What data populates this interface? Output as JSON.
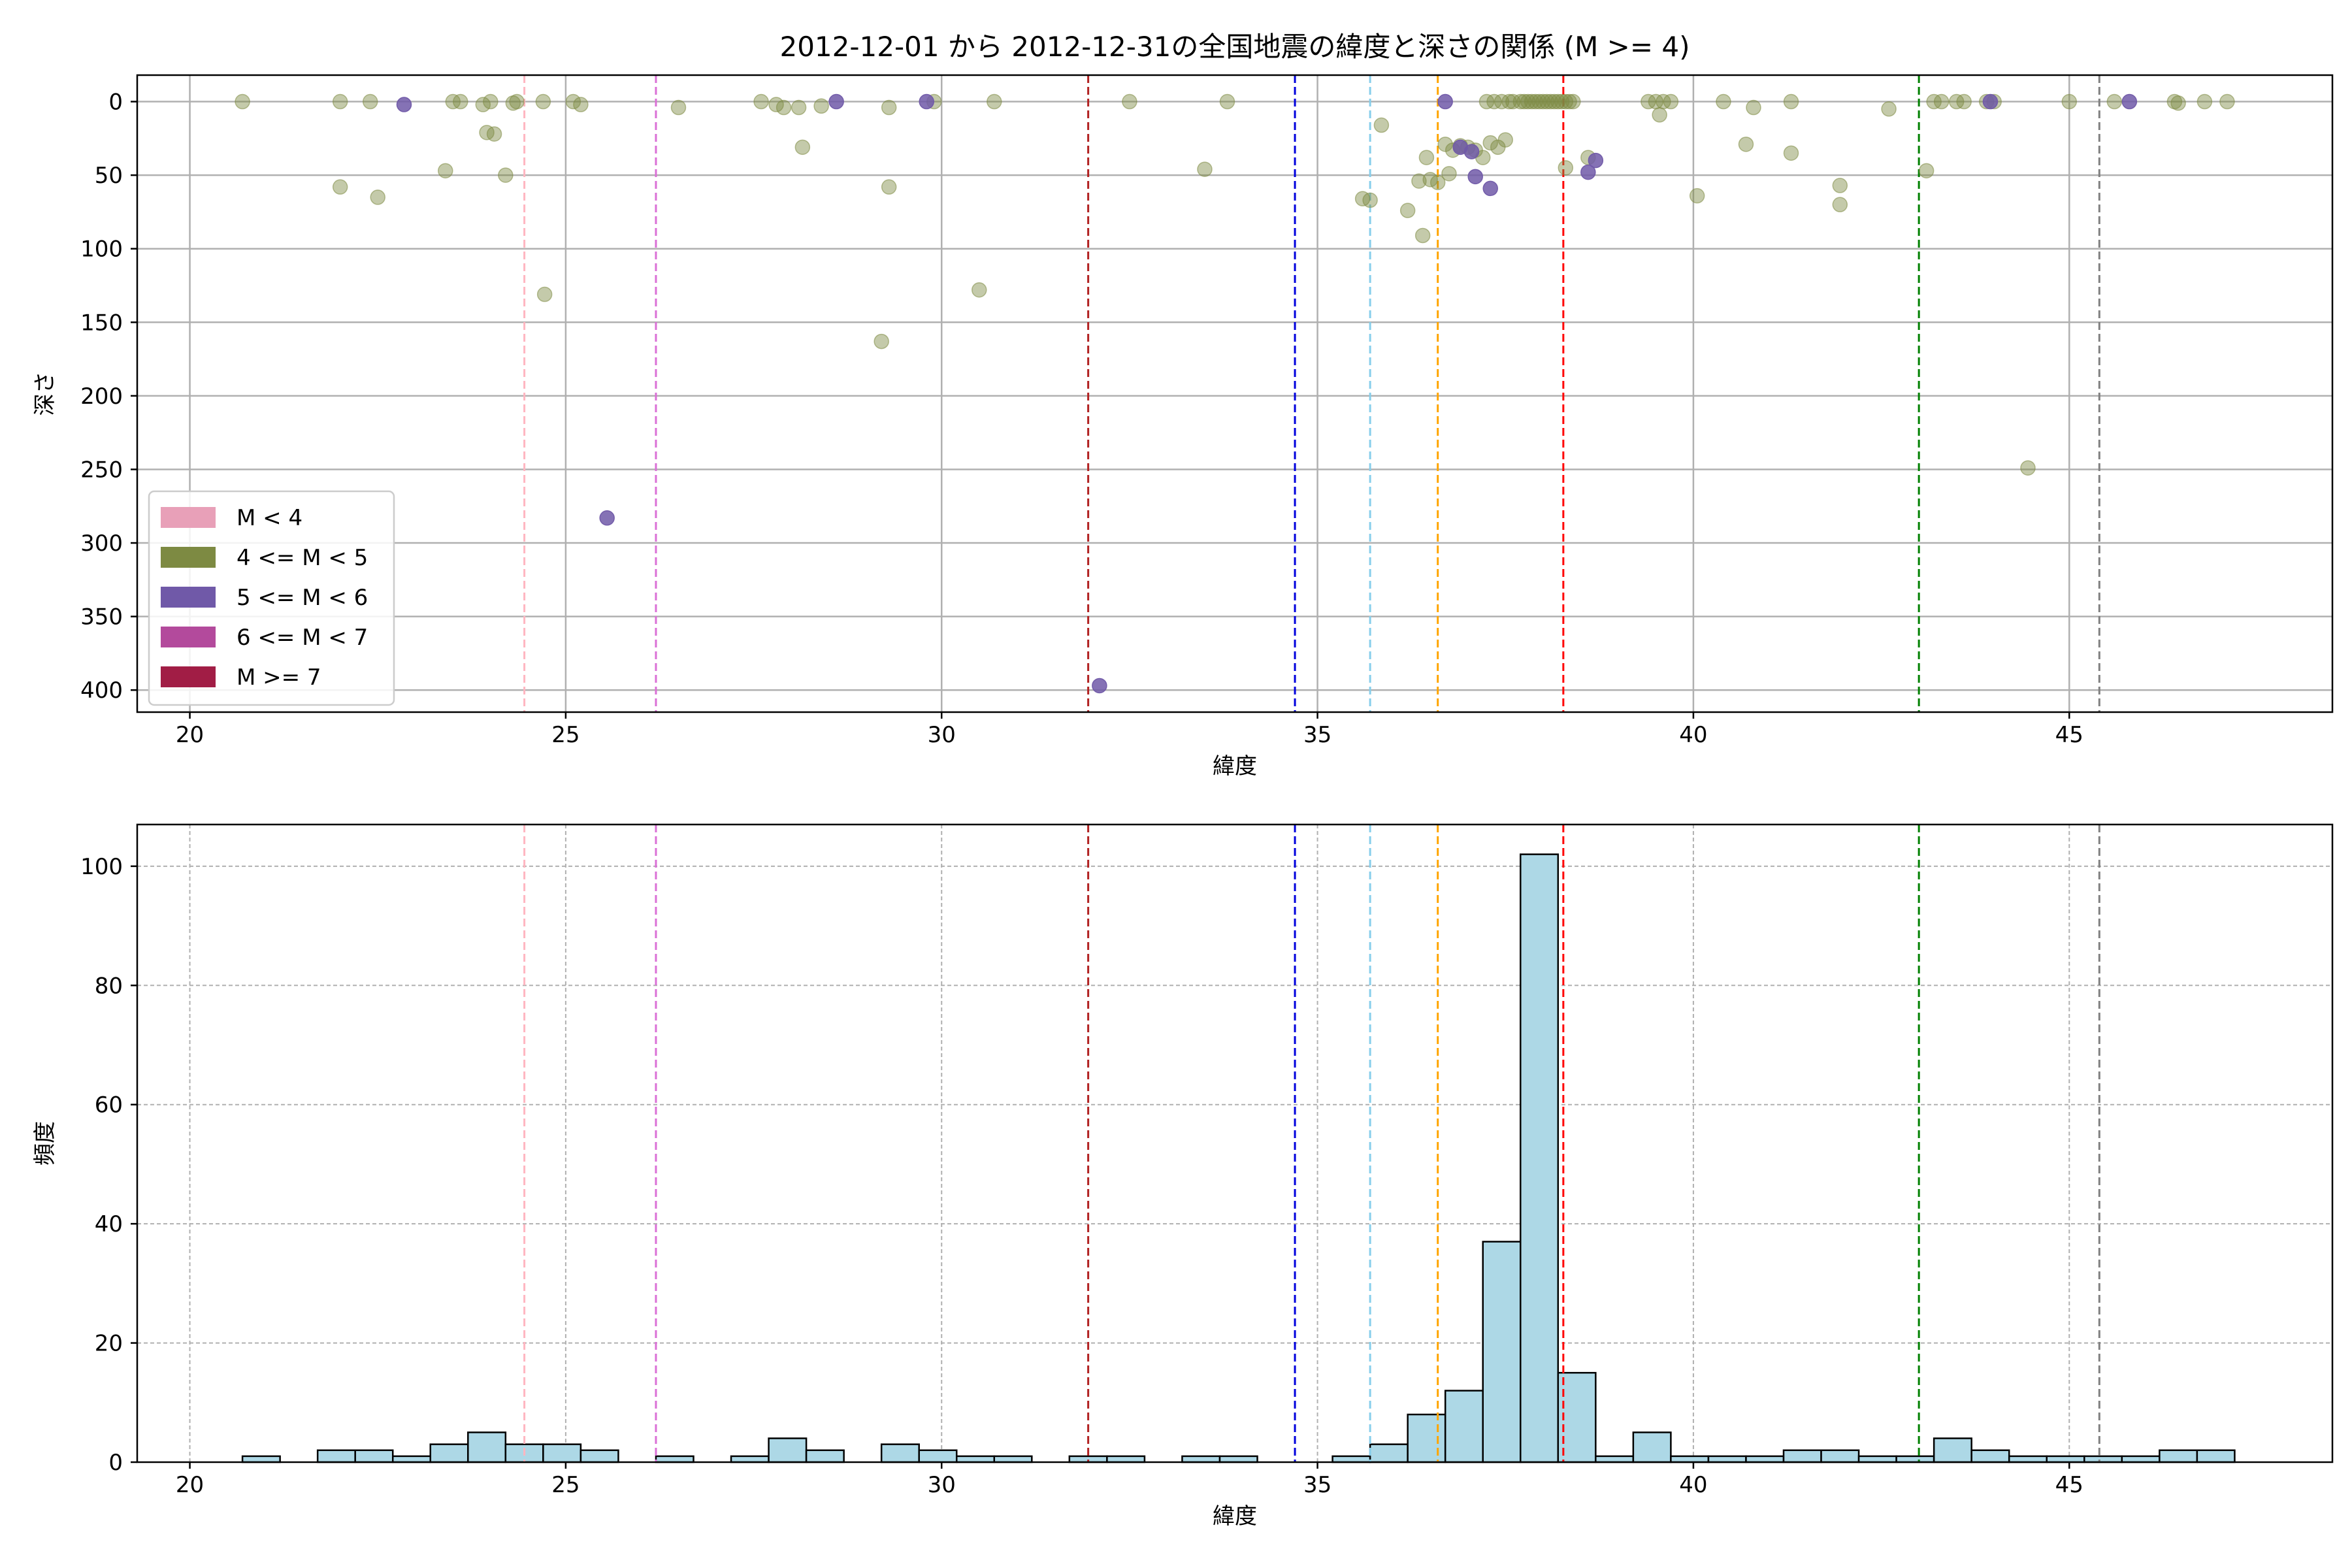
{
  "figure": {
    "title": "2012-12-01 から 2012-12-31の全国地震の緯度と深さの関係 (M >= 4)"
  },
  "chart_data": [
    {
      "type": "scatter",
      "title": "2012-12-01 から 2012-12-31の全国地震の緯度と深さの関係 (M >= 4)",
      "xlabel": "緯度",
      "ylabel": "深さ",
      "xlim": [
        19.3,
        48.5
      ],
      "ylim": [
        415,
        -18
      ],
      "y_inverted": true,
      "xticks": [
        20,
        25,
        30,
        35,
        40,
        45
      ],
      "yticks": [
        0,
        50,
        100,
        150,
        200,
        250,
        300,
        350,
        400
      ],
      "grid": true,
      "legend_position": "lower-left",
      "legend": [
        {
          "label": "M < 4",
          "color": "#e8a0b8"
        },
        {
          "label": "4 <= M < 5",
          "color": "#7d8a42"
        },
        {
          "label": "5 <= M < 6",
          "color": "#7059a8"
        },
        {
          "label": "6 <= M < 7",
          "color": "#b34a9c"
        },
        {
          "label": "M >= 7",
          "color": "#a11d45"
        }
      ],
      "vlines": [
        {
          "x": 24.45,
          "color": "#ffb6c1"
        },
        {
          "x": 26.2,
          "color": "#da70d6"
        },
        {
          "x": 31.95,
          "color": "#b22222"
        },
        {
          "x": 34.7,
          "color": "#0000dd"
        },
        {
          "x": 35.7,
          "color": "#87ceeb"
        },
        {
          "x": 36.6,
          "color": "#ffa500"
        },
        {
          "x": 38.27,
          "color": "#ff0000"
        },
        {
          "x": 43.0,
          "color": "#008000"
        },
        {
          "x": 45.4,
          "color": "#808080"
        }
      ],
      "series": [
        {
          "name": "4 <= M < 5",
          "color": "#7d8a42",
          "points": [
            [
              20.7,
              0
            ],
            [
              22.0,
              0
            ],
            [
              22.4,
              0
            ],
            [
              22.0,
              58
            ],
            [
              22.5,
              65
            ],
            [
              23.4,
              47
            ],
            [
              23.5,
              0
            ],
            [
              23.6,
              0
            ],
            [
              23.9,
              2
            ],
            [
              24.0,
              0
            ],
            [
              23.95,
              21
            ],
            [
              24.05,
              22
            ],
            [
              24.2,
              50
            ],
            [
              24.3,
              1
            ],
            [
              24.35,
              0
            ],
            [
              24.7,
              0
            ],
            [
              24.72,
              131
            ],
            [
              25.1,
              0
            ],
            [
              25.2,
              2
            ],
            [
              26.5,
              4
            ],
            [
              27.6,
              0
            ],
            [
              27.8,
              2
            ],
            [
              27.9,
              4
            ],
            [
              28.1,
              4
            ],
            [
              28.15,
              31
            ],
            [
              28.4,
              3
            ],
            [
              29.2,
              163
            ],
            [
              29.3,
              4
            ],
            [
              29.3,
              58
            ],
            [
              29.9,
              0
            ],
            [
              30.5,
              128
            ],
            [
              30.7,
              0
            ],
            [
              32.5,
              0
            ],
            [
              33.5,
              46
            ],
            [
              33.8,
              0
            ],
            [
              35.6,
              66
            ],
            [
              35.7,
              67
            ],
            [
              35.85,
              16
            ],
            [
              36.2,
              74
            ],
            [
              36.35,
              54
            ],
            [
              36.4,
              91
            ],
            [
              36.45,
              38
            ],
            [
              36.5,
              53
            ],
            [
              36.6,
              55
            ],
            [
              36.7,
              29
            ],
            [
              36.75,
              49
            ],
            [
              36.8,
              33
            ],
            [
              36.9,
              30
            ],
            [
              37.0,
              31
            ],
            [
              37.1,
              33
            ],
            [
              37.2,
              38
            ],
            [
              37.25,
              0
            ],
            [
              37.3,
              28
            ],
            [
              37.35,
              0
            ],
            [
              37.4,
              31
            ],
            [
              37.45,
              0
            ],
            [
              37.5,
              26
            ],
            [
              37.55,
              0
            ],
            [
              37.6,
              0
            ],
            [
              37.7,
              0
            ],
            [
              37.75,
              0
            ],
            [
              37.8,
              0
            ],
            [
              37.85,
              0
            ],
            [
              37.9,
              0
            ],
            [
              37.95,
              0
            ],
            [
              38.0,
              0
            ],
            [
              38.05,
              0
            ],
            [
              38.1,
              0
            ],
            [
              38.15,
              0
            ],
            [
              38.2,
              0
            ],
            [
              38.25,
              0
            ],
            [
              38.3,
              0
            ],
            [
              38.35,
              0
            ],
            [
              38.4,
              0
            ],
            [
              38.3,
              45
            ],
            [
              38.6,
              38
            ],
            [
              39.4,
              0
            ],
            [
              39.5,
              0
            ],
            [
              39.55,
              9
            ],
            [
              39.6,
              0
            ],
            [
              39.7,
              0
            ],
            [
              40.05,
              64
            ],
            [
              40.4,
              0
            ],
            [
              40.7,
              29
            ],
            [
              40.8,
              4
            ],
            [
              41.3,
              0
            ],
            [
              41.3,
              35
            ],
            [
              41.95,
              57
            ],
            [
              41.95,
              70
            ],
            [
              42.6,
              5
            ],
            [
              43.1,
              47
            ],
            [
              43.2,
              0
            ],
            [
              43.3,
              0
            ],
            [
              43.5,
              0
            ],
            [
              43.6,
              0
            ],
            [
              43.9,
              0
            ],
            [
              44.0,
              0
            ],
            [
              44.45,
              249
            ],
            [
              45.0,
              0
            ],
            [
              45.6,
              0
            ],
            [
              46.4,
              0
            ],
            [
              46.45,
              1
            ],
            [
              46.8,
              0
            ],
            [
              47.1,
              0
            ]
          ]
        },
        {
          "name": "5 <= M < 6",
          "color": "#7059a8",
          "points": [
            [
              22.85,
              2
            ],
            [
              25.55,
              283
            ],
            [
              28.6,
              0
            ],
            [
              29.8,
              0
            ],
            [
              32.1,
              397
            ],
            [
              36.7,
              0
            ],
            [
              36.9,
              31
            ],
            [
              37.05,
              34
            ],
            [
              37.1,
              51
            ],
            [
              37.3,
              59
            ],
            [
              38.6,
              48
            ],
            [
              38.7,
              40
            ],
            [
              43.95,
              0
            ],
            [
              45.8,
              0
            ]
          ]
        }
      ]
    },
    {
      "type": "bar",
      "title": "",
      "xlabel": "緯度",
      "ylabel": "頻度",
      "xlim": [
        19.3,
        48.5
      ],
      "ylim": [
        0,
        107
      ],
      "xticks": [
        20,
        25,
        30,
        35,
        40,
        45
      ],
      "yticks": [
        0,
        20,
        40,
        60,
        80,
        100
      ],
      "grid": true,
      "grid_style": "dashed",
      "bar_color": "#add8e6",
      "edge_color": "#000000",
      "bin_start": 20.7,
      "bin_width": 0.5,
      "counts": [
        1,
        0,
        2,
        2,
        1,
        3,
        5,
        3,
        3,
        2,
        0,
        1,
        0,
        1,
        4,
        2,
        0,
        3,
        2,
        1,
        1,
        0,
        1,
        1,
        0,
        1,
        1,
        0,
        0,
        1,
        3,
        8,
        12,
        37,
        102,
        15,
        1,
        5,
        1,
        1,
        1,
        2,
        2,
        1,
        1,
        4,
        2,
        1,
        1,
        1,
        1,
        2,
        2
      ],
      "vlines": [
        {
          "x": 24.45,
          "color": "#ffb6c1"
        },
        {
          "x": 26.2,
          "color": "#da70d6"
        },
        {
          "x": 31.95,
          "color": "#b22222"
        },
        {
          "x": 34.7,
          "color": "#0000dd"
        },
        {
          "x": 35.7,
          "color": "#87ceeb"
        },
        {
          "x": 36.6,
          "color": "#ffa500"
        },
        {
          "x": 38.27,
          "color": "#ff0000"
        },
        {
          "x": 43.0,
          "color": "#008000"
        },
        {
          "x": 45.4,
          "color": "#808080"
        }
      ]
    }
  ]
}
